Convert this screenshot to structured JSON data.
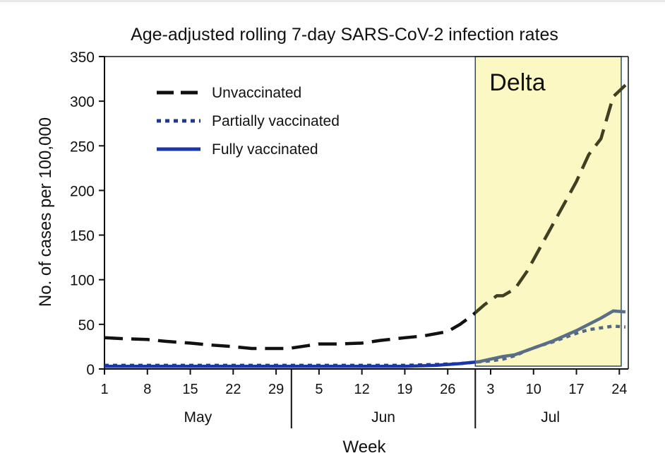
{
  "chart_data": {
    "type": "line",
    "title": "Age-adjusted rolling 7-day SARS-CoV-2 infection rates",
    "xlabel": "Week",
    "ylabel": "No. of cases per 100,000",
    "ylim": [
      0,
      350
    ],
    "yticks": [
      0,
      50,
      100,
      150,
      200,
      250,
      300,
      350
    ],
    "xlim": [
      1,
      86
    ],
    "xticks": [
      {
        "x": 1,
        "label": "1"
      },
      {
        "x": 8,
        "label": "8"
      },
      {
        "x": 15,
        "label": "15"
      },
      {
        "x": 22,
        "label": "22"
      },
      {
        "x": 29,
        "label": "29"
      },
      {
        "x": 36,
        "label": "5"
      },
      {
        "x": 43,
        "label": "12"
      },
      {
        "x": 50,
        "label": "19"
      },
      {
        "x": 57,
        "label": "26"
      },
      {
        "x": 64,
        "label": "3"
      },
      {
        "x": 71,
        "label": "10"
      },
      {
        "x": 78,
        "label": "17"
      },
      {
        "x": 85,
        "label": "24"
      }
    ],
    "months": [
      {
        "label": "May",
        "from": 1,
        "to": 31.5
      },
      {
        "label": "Jun",
        "from": 31.5,
        "to": 61.5
      },
      {
        "label": "Jul",
        "from": 61.5,
        "to": 86
      }
    ],
    "month_dividers": [
      31.5,
      61.5
    ],
    "x_note": "x values are day numbers counted from May 1 (1 = May 1, 32 = Jun 1, 62 = Jul 1)",
    "shaded_region": {
      "label": "Delta",
      "from": 61.5,
      "to": 86,
      "color": "#fbf8c4"
    },
    "legend_position": "top-left",
    "grid": false,
    "series": [
      {
        "name": "Unvaccinated",
        "style": "dashed",
        "color": "#111111",
        "color_in_shaded": "#3f3f22",
        "x": [
          1,
          4,
          8,
          11,
          15,
          18,
          22,
          25,
          29,
          31,
          34,
          36,
          39,
          43,
          46,
          50,
          53,
          57,
          59,
          61,
          63,
          65,
          66,
          68,
          70,
          72,
          74,
          76,
          78,
          80,
          82,
          84,
          86
        ],
        "y": [
          35,
          34,
          33,
          31,
          29,
          27,
          25,
          23,
          23,
          23,
          26,
          28,
          28,
          29,
          32,
          35,
          37,
          42,
          50,
          60,
          72,
          82,
          82,
          90,
          110,
          135,
          160,
          185,
          210,
          240,
          258,
          305,
          318
        ]
      },
      {
        "name": "Partially vaccinated",
        "style": "dotted",
        "color": "#1e3a8a",
        "color_in_shaded": "#556983",
        "x": [
          1,
          8,
          15,
          22,
          29,
          36,
          43,
          50,
          55,
          59,
          62,
          64,
          66,
          68,
          70,
          72,
          74,
          76,
          78,
          80,
          82,
          84,
          86
        ],
        "y": [
          4,
          4,
          4,
          4,
          4,
          4,
          4,
          4,
          5,
          6,
          8,
          9,
          11,
          15,
          21,
          26,
          30,
          35,
          40,
          44,
          46,
          48,
          47
        ]
      },
      {
        "name": "Fully vaccinated",
        "style": "solid",
        "color": "#1a36a8",
        "color_in_shaded": "#5a6e86",
        "x": [
          1,
          8,
          15,
          22,
          29,
          36,
          43,
          50,
          55,
          59,
          62,
          64,
          66,
          68,
          70,
          72,
          74,
          76,
          78,
          80,
          82,
          84,
          86
        ],
        "y": [
          3,
          3,
          3,
          3,
          3,
          3,
          3,
          3,
          4,
          6,
          8,
          11,
          14,
          16,
          21,
          26,
          31,
          37,
          43,
          50,
          57,
          65,
          64
        ]
      }
    ]
  }
}
